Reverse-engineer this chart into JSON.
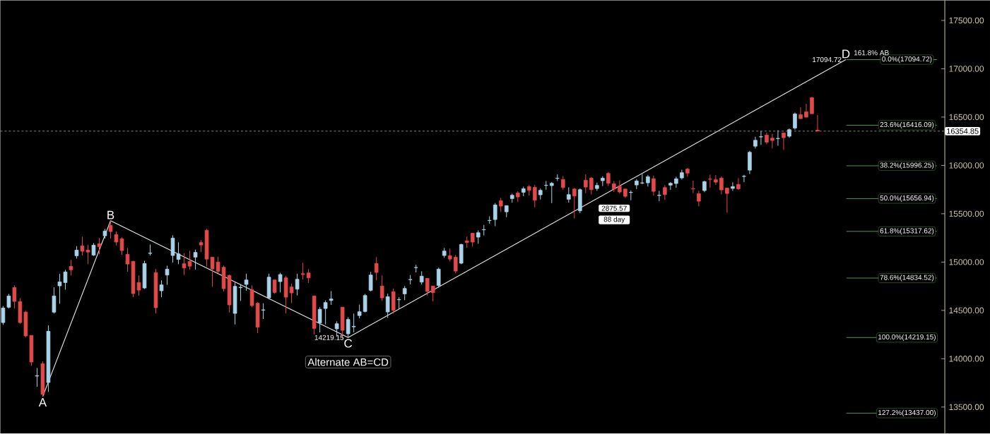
{
  "chart_data": {
    "type": "candlestick",
    "categories": [
      null,
      null,
      null,
      null,
      null,
      null,
      null,
      null,
      null,
      null,
      null,
      null,
      null,
      null,
      null,
      null,
      null,
      null,
      null,
      null,
      null,
      null,
      null,
      null,
      null,
      null,
      null,
      null,
      null,
      null,
      null,
      null,
      null,
      null,
      null,
      null,
      null,
      null,
      null,
      null,
      null,
      null,
      null,
      null,
      null,
      null,
      null,
      null,
      null,
      null,
      null,
      null,
      null,
      null,
      null,
      null,
      null,
      null,
      null,
      null,
      null,
      null,
      null,
      null,
      null,
      null,
      null,
      null,
      null,
      null,
      null,
      null,
      null,
      null,
      null,
      null,
      null,
      null,
      null,
      null,
      null,
      null,
      null,
      null,
      null,
      null,
      null,
      null,
      null,
      null,
      null,
      null,
      null,
      null,
      null,
      null,
      null,
      null,
      null,
      null,
      null,
      null,
      null,
      null,
      null,
      null,
      null,
      null,
      null,
      null,
      null,
      null,
      null,
      null,
      null,
      null,
      null,
      null,
      null,
      null,
      null,
      null,
      null,
      null,
      null,
      null,
      null,
      null,
      null,
      null,
      null,
      null,
      null,
      null,
      null,
      null,
      null,
      null,
      null,
      null,
      null,
      null,
      null,
      null,
      null,
      null,
      null,
      null,
      null,
      null,
      null,
      null,
      null,
      null,
      null,
      null,
      null,
      null,
      null,
      null,
      null,
      null,
      null,
      null,
      null,
      null,
      null
    ],
    "colors": [
      "#a9d3e8",
      "#a9d3e8",
      "#e04a4a",
      "#e04a4a",
      "#e04a4a",
      "#e04a4a",
      "#a9d3e8",
      "#e04a4a",
      "#a9d3e8",
      "#a9d3e8",
      "#a9d3e8",
      "#a9d3e8",
      "#e04a4a",
      "#a9d3e8",
      "#e04a4a",
      "#e04a4a",
      "#a9d3e8",
      "#e04a4a",
      "#a9d3e8",
      "#e04a4a",
      "#e04a4a",
      "#e04a4a",
      "#e04a4a",
      "#e04a4a",
      "#e04a4a",
      "#a9d3e8",
      "#a9d3e8",
      "#e04a4a",
      "#a9d3e8",
      "#a9d3e8",
      "#a9d3e8",
      "#a9d3e8",
      "#e04a4a",
      "#e04a4a",
      "#a9d3e8",
      "#e04a4a",
      "#e04a4a",
      "#e04a4a",
      "#e04a4a",
      "#e04a4a",
      "#e04a4a",
      "#a9d3e8",
      "#a9d3e8",
      "#a9d3e8",
      "#e04a4a",
      "#e04a4a",
      "#a9d3e8",
      "#a9d3e8",
      "#e04a4a",
      "#a9d3e8",
      "#e04a4a",
      "#e04a4a",
      "#a9d3e8",
      "#e04a4a",
      "#e04a4a",
      "#e04a4a",
      "#a9d3e8",
      "#a9d3e8",
      "#a9d3e8",
      "#a9d3e8",
      "#e04a4a",
      "#a9d3e8",
      "#a9d3e8",
      "#a9d3e8",
      "#a9d3e8",
      "#a9d3e8",
      "#e04a4a",
      "#e04a4a",
      "#a9d3e8",
      "#e04a4a",
      "#a9d3e8",
      "#a9d3e8",
      "#a9d3e8",
      "#a9d3e8",
      "#a9d3e8",
      "#e04a4a",
      "#e04a4a",
      "#a9d3e8",
      "#a9d3e8",
      "#e04a4a",
      "#e04a4a",
      "#a9d3e8",
      "#e04a4a",
      "#e04a4a",
      "#a9d3e8",
      "#a9d3e8",
      "#a9d3e8",
      "#a9d3e8",
      "#e04a4a",
      "#a9d3e8",
      "#a9d3e8",
      "#e04a4a",
      "#a9d3e8",
      "#e04a4a",
      "#e04a4a",
      "#a9d3e8",
      "#a9d3e8",
      "#a9d3e8",
      "#a9d3e8",
      "#e04a4a",
      "#a9d3e8",
      "#e04a4a",
      "#a9d3e8",
      "#e04a4a",
      "#e04a4a",
      "#a9d3e8",
      "#a9d3e8",
      "#e04a4a",
      "#e04a4a",
      "#e04a4a",
      "#e04a4a",
      "#a9d3e8",
      "#a9d3e8",
      "#a9d3e8",
      "#a9d3e8",
      "#e04a4a",
      "#a9d3e8",
      "#e04a4a",
      "#a9d3e8",
      "#a9d3e8",
      "#a9d3e8",
      "#e04a4a",
      "#e04a4a",
      "#e04a4a",
      "#a9d3e8",
      "#e04a4a",
      "#e04a4a",
      "#e04a4a",
      "#e04a4a",
      "#a9d3e8",
      "#e04a4a",
      "#a9d3e8",
      "#a9d3e8",
      "#a9d3e8",
      "#a9d3e8",
      "#e04a4a",
      "#e04a4a",
      "#a9d3e8",
      "#e04a4a",
      "#a9d3e8",
      "#a9d3e8",
      "#e04a4a",
      "#e04a4a",
      "#e04a4a",
      "#e04a4a",
      null,
      null,
      null,
      null,
      null,
      null,
      null,
      null,
      null,
      null,
      null,
      null,
      null,
      null,
      null,
      null,
      null,
      null,
      null,
      null,
      null,
      null
    ],
    "ohlc": [
      [
        14374,
        14545,
        14350,
        14525
      ],
      [
        14533,
        14671,
        14520,
        14649
      ],
      [
        14737,
        14759,
        14520,
        14593
      ],
      [
        14591,
        14628,
        14362,
        14374
      ],
      [
        14482,
        14496,
        14221,
        14236
      ],
      [
        14241,
        14241,
        13927,
        13966
      ],
      [
        13820,
        13905,
        13710,
        13825
      ],
      [
        13949,
        13973,
        13608,
        13632
      ],
      [
        13754,
        14345,
        13657,
        14284
      ],
      [
        14482,
        14739,
        14467,
        14649
      ],
      [
        14754,
        14878,
        14569,
        14795
      ],
      [
        14788,
        14920,
        14715,
        14898
      ],
      [
        14956,
        15022,
        14861,
        14920
      ],
      [
        15065,
        15165,
        15036,
        15124
      ],
      [
        15168,
        15263,
        15068,
        15112
      ],
      [
        15124,
        15177,
        14978,
        15104
      ],
      [
        15073,
        15197,
        15063,
        15175
      ],
      [
        15190,
        15250,
        15080,
        15160
      ],
      [
        15272,
        15343,
        15243,
        15321
      ],
      [
        15379,
        15428,
        15243,
        15316
      ],
      [
        15284,
        15319,
        15173,
        15207
      ],
      [
        15241,
        15255,
        15075,
        15119
      ],
      [
        15080,
        15146,
        14900,
        14980
      ],
      [
        15007,
        15014,
        14637,
        14674
      ],
      [
        14788,
        14861,
        14652,
        14710
      ],
      [
        14732,
        15014,
        14722,
        14985
      ],
      [
        15090,
        15182,
        15068,
        15093
      ],
      [
        14890,
        14929,
        14467,
        14528
      ],
      [
        14703,
        14812,
        14637,
        14764
      ],
      [
        14866,
        14963,
        14764,
        14926
      ],
      [
        15068,
        15277,
        14995,
        15248
      ],
      [
        15027,
        15204,
        14978,
        15085
      ],
      [
        14983,
        15092,
        14866,
        14939
      ],
      [
        15007,
        15117,
        14922,
        14958
      ],
      [
        15051,
        15129,
        14922,
        15100
      ],
      [
        15202,
        15226,
        15104,
        15177
      ],
      [
        15328,
        15343,
        14954,
        15031
      ],
      [
        15051,
        15051,
        14744,
        14929
      ],
      [
        15000,
        15056,
        14885,
        14905
      ],
      [
        14946,
        14963,
        14696,
        14725
      ],
      [
        14861,
        14873,
        14477,
        14557
      ],
      [
        14469,
        14788,
        14355,
        14749
      ],
      [
        14735,
        14764,
        14598,
        14740
      ],
      [
        14769,
        14880,
        14703,
        14815
      ],
      [
        14713,
        14759,
        14533,
        14550
      ],
      [
        14574,
        14586,
        14265,
        14326
      ],
      [
        14502,
        14574,
        14411,
        14506
      ],
      [
        14630,
        14880,
        14613,
        14844
      ],
      [
        14815,
        14815,
        14671,
        14686
      ],
      [
        14798,
        14890,
        14686,
        14871
      ],
      [
        14837,
        14856,
        14467,
        14637
      ],
      [
        14742,
        14778,
        14574,
        14681
      ],
      [
        14720,
        14880,
        14654,
        14822
      ],
      [
        14880,
        14992,
        14820,
        14871
      ],
      [
        14888,
        14927,
        14783,
        14837
      ],
      [
        14649,
        14654,
        14253,
        14314
      ],
      [
        14370,
        14533,
        14272,
        14511
      ],
      [
        14520,
        14603,
        14355,
        14581
      ],
      [
        14603,
        14700,
        14557,
        14618
      ],
      [
        14309,
        14387,
        14229,
        14362
      ],
      [
        14533,
        14533,
        14204,
        14294
      ],
      [
        14258,
        14430,
        14219,
        14406
      ],
      [
        14330,
        14467,
        14272,
        14335
      ],
      [
        14447,
        14560,
        14418,
        14486
      ],
      [
        14489,
        14671,
        14479,
        14654
      ],
      [
        14708,
        14898,
        14696,
        14866
      ],
      [
        14985,
        15051,
        14812,
        14893
      ],
      [
        14752,
        14861,
        14598,
        14630
      ],
      [
        14484,
        14674,
        14423,
        14642
      ],
      [
        14693,
        14727,
        14467,
        14501
      ],
      [
        14610,
        14637,
        14513,
        14613
      ],
      [
        14671,
        14752,
        14606,
        14727
      ],
      [
        14818,
        14866,
        14769,
        14820
      ],
      [
        14942,
        14971,
        14893,
        14944
      ],
      [
        14793,
        14905,
        14769,
        14854
      ],
      [
        14832,
        14832,
        14654,
        14696
      ],
      [
        14752,
        14752,
        14593,
        14684
      ],
      [
        14757,
        14942,
        14735,
        14927
      ],
      [
        15068,
        15146,
        15044,
        15114
      ],
      [
        15066,
        15139,
        15007,
        15031
      ],
      [
        15051,
        15073,
        14885,
        14907
      ],
      [
        14988,
        15190,
        14978,
        15182
      ],
      [
        15219,
        15263,
        15148,
        15202
      ],
      [
        15299,
        15299,
        15160,
        15207
      ],
      [
        15258,
        15328,
        15190,
        15304
      ],
      [
        15334,
        15384,
        15275,
        15336
      ],
      [
        15429,
        15474,
        15396,
        15431
      ],
      [
        15440,
        15611,
        15372,
        15591
      ],
      [
        15635,
        15664,
        15518,
        15579
      ],
      [
        15520,
        15584,
        15465,
        15584
      ],
      [
        15657,
        15708,
        15615,
        15691
      ],
      [
        15715,
        15732,
        15623,
        15674
      ],
      [
        15722,
        15781,
        15681,
        15759
      ],
      [
        15781,
        15798,
        15688,
        15742
      ],
      [
        15773,
        15798,
        15567,
        15640
      ],
      [
        15696,
        15761,
        15647,
        15742
      ],
      [
        15793,
        15839,
        15749,
        15795
      ],
      [
        15791,
        15829,
        15610,
        15815
      ],
      [
        15866,
        15907,
        15839,
        15868
      ],
      [
        15854,
        15890,
        15749,
        15771
      ],
      [
        15650,
        15773,
        15615,
        15698
      ],
      [
        15756,
        15766,
        15452,
        15684
      ],
      [
        15530,
        15761,
        15506,
        15749
      ],
      [
        15847,
        15907,
        15713,
        15776
      ],
      [
        15868,
        15880,
        15700,
        15749
      ],
      [
        15761,
        15822,
        15737,
        15793
      ],
      [
        15842,
        15888,
        15786,
        15868
      ],
      [
        15917,
        15932,
        15786,
        15815
      ],
      [
        15810,
        15839,
        15725,
        15756
      ],
      [
        15786,
        15846,
        15708,
        15725
      ],
      [
        15756,
        15756,
        15664,
        15681
      ],
      [
        15720,
        15742,
        15640,
        15722
      ],
      [
        15798,
        15859,
        15756,
        15839
      ],
      [
        15817,
        15912,
        15805,
        15820
      ],
      [
        15820,
        15902,
        15781,
        15883
      ],
      [
        15863,
        15895,
        15688,
        15732
      ],
      [
        15689,
        15737,
        15630,
        15691
      ],
      [
        15771,
        15796,
        15645,
        15698
      ],
      [
        15796,
        15827,
        15747,
        15815
      ],
      [
        15813,
        15883,
        15769,
        15861
      ],
      [
        15871,
        15956,
        15854,
        15925
      ],
      [
        15963,
        15973,
        15883,
        15920
      ],
      [
        15759,
        15842,
        15713,
        15757
      ],
      [
        15708,
        15737,
        15577,
        15630
      ],
      [
        15740,
        15842,
        15723,
        15832
      ],
      [
        15859,
        15905,
        15769,
        15857
      ],
      [
        15852,
        15900,
        15798,
        15827
      ],
      [
        15869,
        15888,
        15701,
        15747
      ],
      [
        15766,
        15766,
        15511,
        15710
      ],
      [
        15762,
        15825,
        15737,
        15781
      ],
      [
        15803,
        15869,
        15747,
        15759
      ],
      [
        15886,
        15903,
        15827,
        15888
      ],
      [
        15951,
        16151,
        15912,
        16136
      ],
      [
        16199,
        16297,
        16175,
        16260
      ],
      [
        16295,
        16355,
        16212,
        16297
      ],
      [
        16314,
        16341,
        16219,
        16241
      ],
      [
        16282,
        16328,
        16175,
        16258
      ],
      [
        16278,
        16365,
        16204,
        16280
      ],
      [
        16336,
        16336,
        16161,
        16287
      ],
      [
        16302,
        16382,
        16285,
        16370
      ],
      [
        16387,
        16547,
        16370,
        16533
      ],
      [
        16525,
        16601,
        16484,
        16484
      ],
      [
        16555,
        16637,
        16499,
        16499
      ],
      [
        16701,
        16710,
        16535,
        16535
      ],
      [
        16365,
        16521,
        16355,
        16355
      ],
      null,
      null,
      null,
      null,
      null,
      null,
      null,
      null,
      null,
      null,
      null,
      null,
      null,
      null,
      null,
      null,
      null,
      null,
      null,
      null,
      null,
      null
    ],
    "series": [
      {
        "type": "line",
        "color": "#e6e6e6",
        "values": [
          null,
          null,
          null,
          null,
          null,
          null,
          null,
          13608,
          null,
          null,
          null,
          null,
          null,
          null,
          null,
          null,
          null,
          null,
          null,
          15428,
          null,
          null,
          null,
          null,
          null,
          null,
          null,
          null,
          null,
          null,
          null,
          null,
          null,
          null,
          null,
          null,
          null,
          null,
          null,
          null,
          null,
          null,
          null,
          null,
          null,
          null,
          null,
          null,
          null,
          null,
          null,
          null,
          null,
          null,
          null,
          null,
          null,
          null,
          null,
          null,
          null,
          14219.15,
          null,
          null,
          null,
          null,
          null,
          null,
          null,
          null,
          null,
          null,
          null,
          null,
          null,
          null,
          null,
          null,
          null,
          null,
          null,
          null,
          null,
          null,
          null,
          null,
          null,
          null,
          null,
          null,
          null,
          null,
          null,
          null,
          null,
          null,
          null,
          null,
          null,
          null,
          null,
          null,
          null,
          null,
          null,
          null,
          null,
          null,
          null,
          null,
          null,
          null,
          null,
          null,
          null,
          null,
          null,
          null,
          null,
          null,
          null,
          null,
          null,
          null,
          null,
          null,
          null,
          null,
          null,
          null,
          null,
          null,
          null,
          null,
          null,
          null,
          null,
          null,
          null,
          null,
          null,
          null,
          null,
          null,
          null,
          null,
          null,
          null,
          null,
          17094.72,
          null,
          null,
          null,
          null,
          null,
          null,
          null,
          null,
          null,
          null,
          null,
          null,
          null,
          null,
          null,
          null,
          null
        ],
        "value_labels": [
          null,
          null,
          null,
          null,
          null,
          null,
          null,
          "A",
          null,
          null,
          null,
          null,
          null,
          null,
          null,
          null,
          null,
          null,
          null,
          "B",
          null,
          null,
          null,
          null,
          null,
          null,
          null,
          null,
          null,
          null,
          null,
          null,
          null,
          null,
          null,
          null,
          null,
          null,
          null,
          null,
          null,
          null,
          null,
          null,
          null,
          null,
          null,
          null,
          null,
          null,
          null,
          null,
          null,
          null,
          null,
          null,
          null,
          null,
          null,
          null,
          null,
          "C",
          null,
          null,
          null,
          null,
          null,
          null,
          null,
          null,
          null,
          null,
          null,
          null,
          null,
          null,
          null,
          null,
          null,
          null,
          null,
          null,
          null,
          null,
          null,
          null,
          null,
          null,
          null,
          null,
          null,
          null,
          null,
          null,
          null,
          null,
          null,
          null,
          null,
          null,
          null,
          null,
          null,
          null,
          null,
          null,
          null,
          null,
          null,
          null,
          null,
          null,
          null,
          null,
          null,
          null,
          null,
          null,
          null,
          null,
          null,
          null,
          null,
          null,
          null,
          null,
          null,
          null,
          null,
          null,
          null,
          null,
          null,
          null,
          null,
          null,
          null,
          null,
          null,
          null,
          null,
          null,
          null,
          null,
          null,
          null,
          null,
          null,
          null,
          "D",
          null,
          null,
          null,
          null,
          null,
          null,
          null,
          null,
          null,
          null,
          null,
          null,
          null,
          null,
          null,
          null,
          null
        ]
      }
    ],
    "ylim": [
      13226,
      17708
    ],
    "yticks": [
      {
        "value": 13500,
        "label": "13500.00"
      },
      {
        "value": 14000,
        "label": "14000.00"
      },
      {
        "value": 14500,
        "label": "14500.00"
      },
      {
        "value": 15000,
        "label": "15000.00"
      },
      {
        "value": 15500,
        "label": "15500.00"
      },
      {
        "value": 16000,
        "label": "16000.00"
      },
      {
        "value": 16500,
        "label": "16500.00"
      },
      {
        "value": 17000,
        "label": "17000.00"
      },
      {
        "value": 17500,
        "label": "17500.00"
      }
    ],
    "tick_labels": "y",
    "ref_lines": [
      {
        "axis": "y",
        "value": 17094.72,
        "label": "0.0%(17094.72)",
        "color": "#66b866"
      },
      {
        "axis": "y",
        "value": 16416.09,
        "label": "23.6%(16416.09)",
        "color": "#66b866"
      },
      {
        "axis": "y",
        "value": 15996.25,
        "label": "38.2%(15996.25)",
        "color": "#66b866"
      },
      {
        "axis": "y",
        "value": 15656.94,
        "label": "50.0%(15656.94)",
        "color": "#66b866"
      },
      {
        "axis": "y",
        "value": 15317.62,
        "label": "61.8%(15317.62)",
        "color": "#66b866"
      },
      {
        "axis": "y",
        "value": 14834.52,
        "label": "78.6%(14834.52)",
        "color": "#66b866"
      },
      {
        "axis": "y",
        "value": 14219.15,
        "label": "100.0%(14219.15)",
        "color": "#66b866"
      },
      {
        "axis": "y",
        "value": 13437.0,
        "label": "127.2%(13437.00)",
        "color": "#66b866"
      },
      {
        "axis": "y",
        "value": 16354.85,
        "label": "16354.85",
        "color": "#a0a0a0",
        "line_style": "dashed"
      }
    ],
    "annotations": [
      "14219.15",
      "17094.72",
      "161.8% AB",
      "Alternate AB=CD",
      "2875.57",
      "88 day"
    ]
  }
}
